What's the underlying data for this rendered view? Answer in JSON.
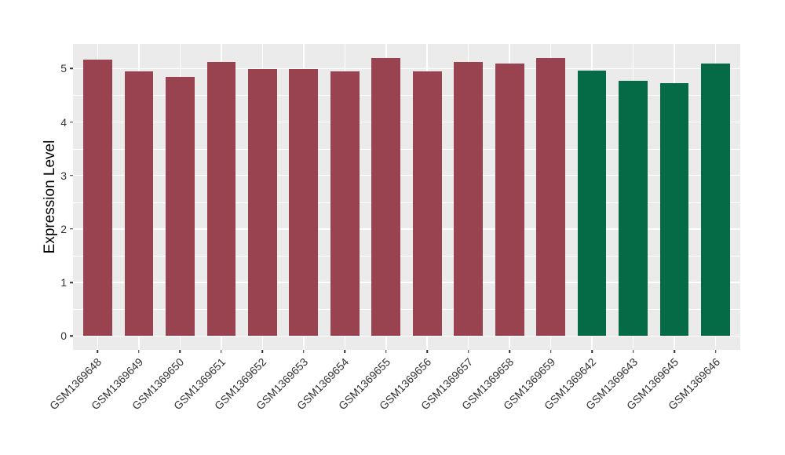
{
  "chart_data": {
    "type": "bar",
    "title": "",
    "xlabel": "",
    "ylabel": "Expression Level",
    "categories": [
      "GSM1369648",
      "GSM1369649",
      "GSM1369650",
      "GSM1369651",
      "GSM1369652",
      "GSM1369653",
      "GSM1369654",
      "GSM1369655",
      "GSM1369656",
      "GSM1369657",
      "GSM1369658",
      "GSM1369659",
      "GSM1369642",
      "GSM1369643",
      "GSM1369645",
      "GSM1369646"
    ],
    "values": [
      5.17,
      4.94,
      4.84,
      5.12,
      4.99,
      4.99,
      4.95,
      5.19,
      4.94,
      5.13,
      5.1,
      5.2,
      4.96,
      4.77,
      4.73,
      5.1
    ],
    "groups": [
      "group1",
      "group1",
      "group1",
      "group1",
      "group1",
      "group1",
      "group1",
      "group1",
      "group1",
      "group1",
      "group1",
      "group1",
      "group2",
      "group2",
      "group2",
      "group2"
    ],
    "group_colors": {
      "group1": "#9A4350",
      "group2": "#046B46"
    },
    "yticks": [
      0,
      1,
      2,
      3,
      4,
      5
    ],
    "ylim": [
      0,
      5.2
    ],
    "y_expansion": 0.05,
    "grid": true,
    "legend": "none",
    "panel_bg": "#EBEBEB",
    "grid_color": "#FFFFFF",
    "bar_width_ratio": 0.7
  }
}
